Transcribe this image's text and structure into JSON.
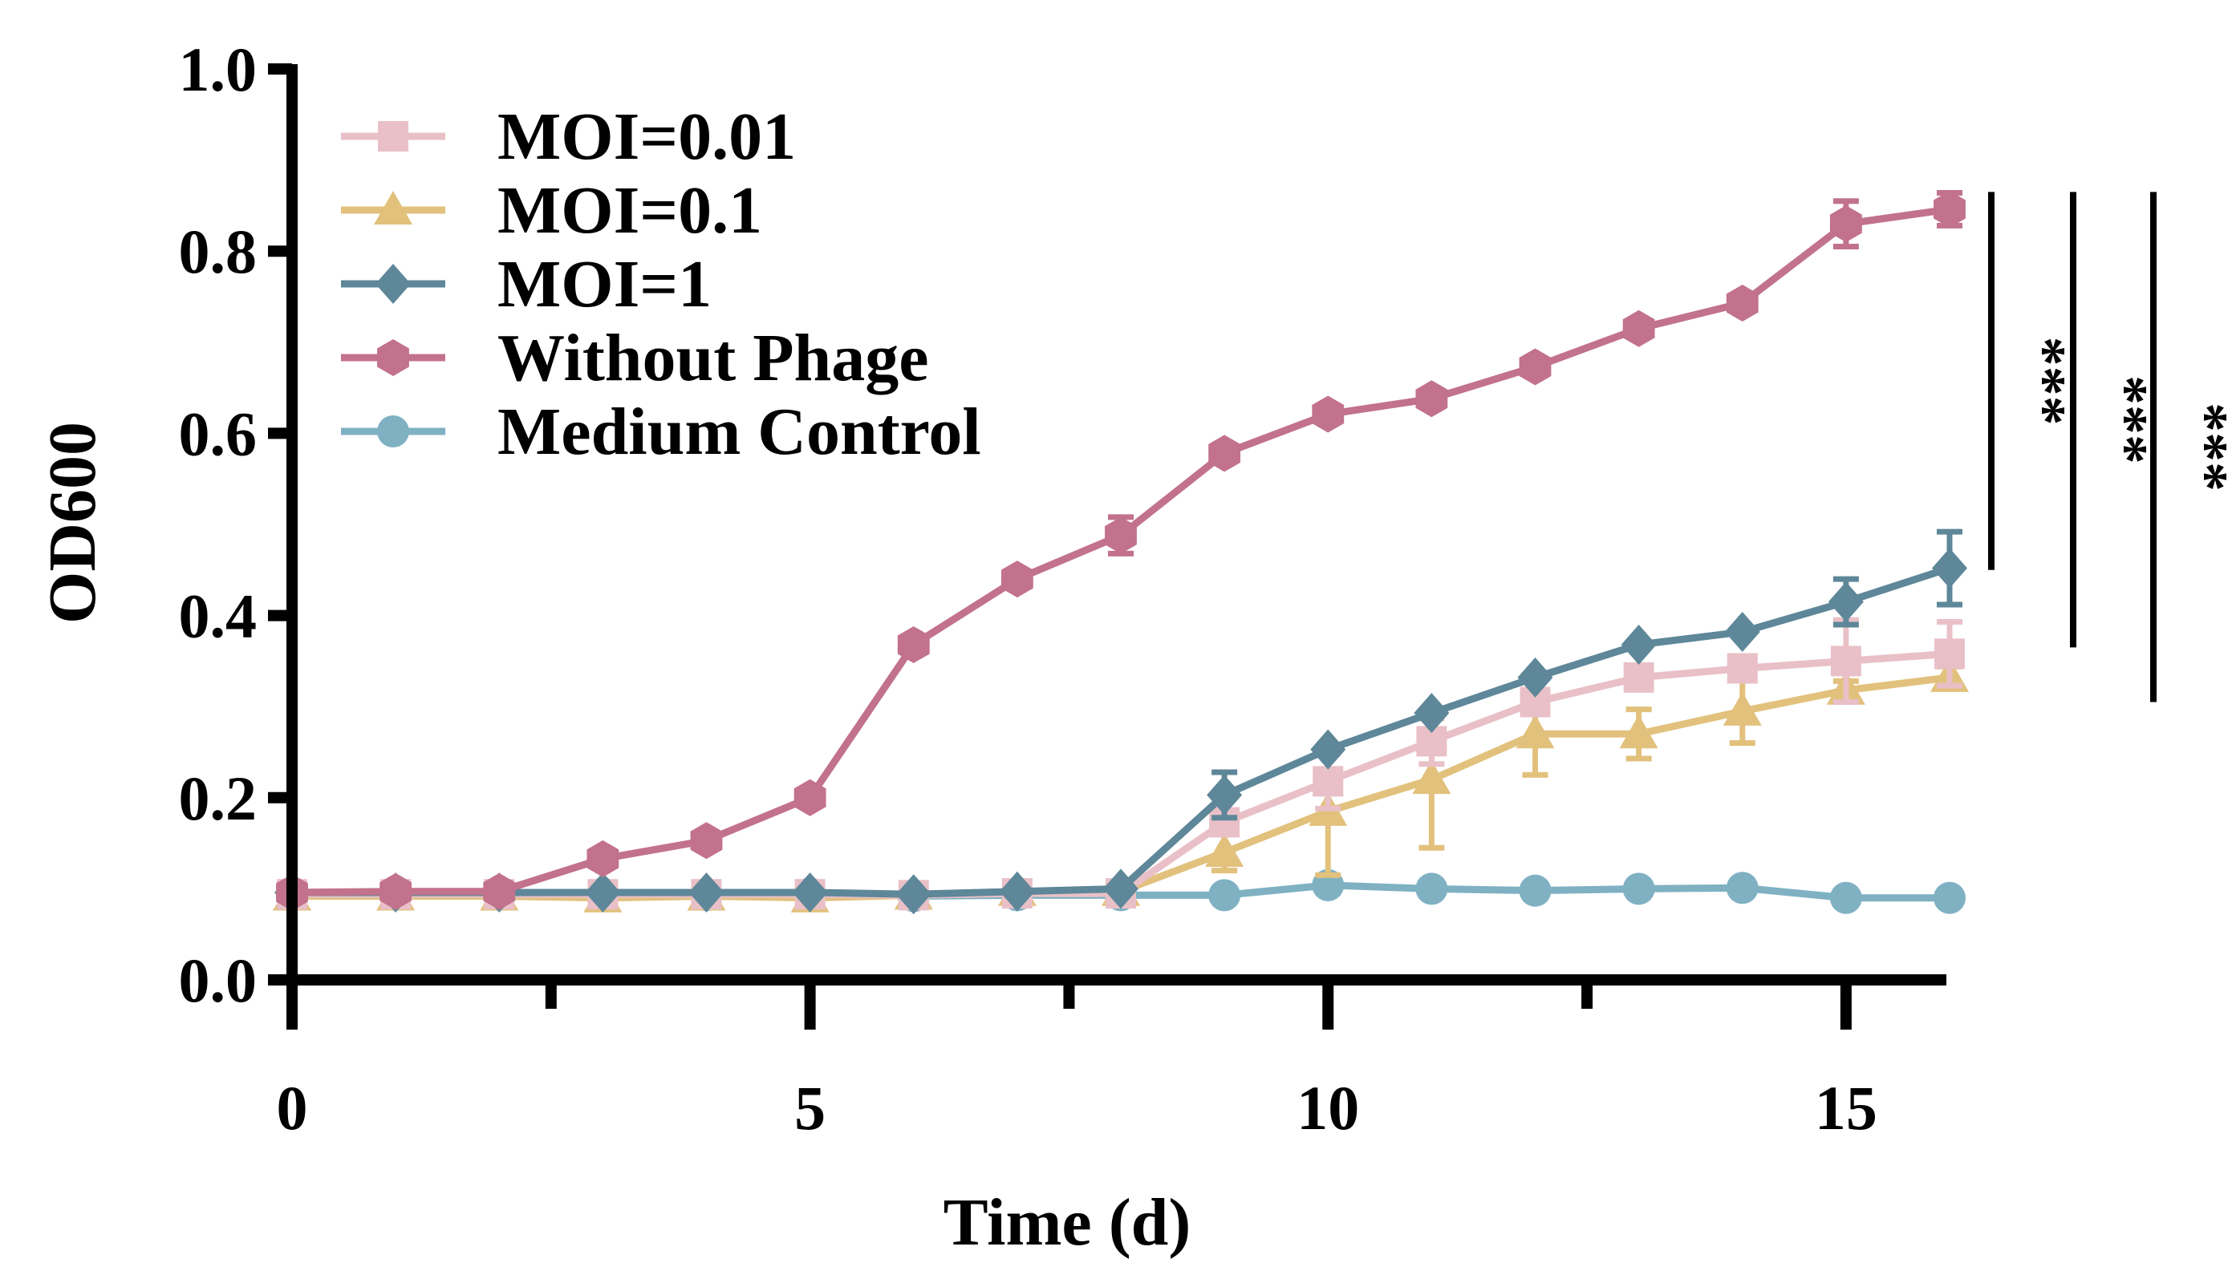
{
  "chart_data": {
    "type": "line",
    "title": "",
    "xlabel": "Time (d)",
    "ylabel": "OD600",
    "xlim": [
      0,
      16
    ],
    "ylim": [
      0,
      1.0
    ],
    "x_ticks": [
      0,
      5,
      10,
      15
    ],
    "x_minor_ticks": [
      2.5,
      7.5,
      12.5
    ],
    "x_tick_labels": [
      "0",
      "5",
      "10",
      "15"
    ],
    "y_ticks": [
      0.0,
      0.2,
      0.4,
      0.6,
      0.8,
      1.0
    ],
    "y_tick_labels": [
      "0.0",
      "0.2",
      "0.4",
      "0.6",
      "0.8",
      "1.0"
    ],
    "grid": false,
    "legend_position": "top-left",
    "x": [
      0,
      1,
      2,
      3,
      4,
      5,
      6,
      7,
      8,
      9,
      10,
      11,
      12,
      13,
      14,
      15,
      16
    ],
    "series": [
      {
        "name": "Medium Control",
        "color": "#7fb1c3",
        "marker": "circle",
        "values": [
          0.095,
          0.095,
          0.095,
          0.095,
          0.093,
          0.095,
          0.092,
          0.093,
          0.093,
          0.093,
          0.104,
          0.1,
          0.098,
          0.1,
          0.101,
          0.09,
          0.09
        ],
        "errors": [
          0,
          0,
          0,
          0,
          0,
          0,
          0,
          0,
          0,
          0,
          0,
          0,
          0,
          0,
          0,
          0,
          0
        ]
      },
      {
        "name": "MOI=0.1",
        "color": "#e2c17d",
        "marker": "triangle",
        "values": [
          0.092,
          0.092,
          0.092,
          0.09,
          0.092,
          0.09,
          0.093,
          0.097,
          0.097,
          0.14,
          0.185,
          0.22,
          0.27,
          0.27,
          0.295,
          0.318,
          0.332
        ],
        "errors": [
          0,
          0,
          0,
          0,
          0,
          0,
          0,
          0,
          0,
          0.02,
          0.07,
          0.075,
          0.045,
          0.027,
          0.035,
          0.01,
          0.012
        ]
      },
      {
        "name": "MOI=0.01",
        "color": "#e9c0c7",
        "marker": "square",
        "values": [
          0.094,
          0.094,
          0.094,
          0.094,
          0.094,
          0.094,
          0.093,
          0.095,
          0.095,
          0.173,
          0.218,
          0.262,
          0.305,
          0.332,
          0.342,
          0.35,
          0.358
        ],
        "errors": [
          0,
          0,
          0,
          0,
          0,
          0,
          0,
          0,
          0,
          0,
          0.03,
          0.025,
          0.01,
          0.01,
          0.01,
          0.045,
          0.035
        ]
      },
      {
        "name": "MOI=1",
        "color": "#5e8799",
        "marker": "diamond",
        "values": [
          0.096,
          0.096,
          0.096,
          0.096,
          0.096,
          0.096,
          0.094,
          0.097,
          0.1,
          0.203,
          0.253,
          0.293,
          0.332,
          0.368,
          0.382,
          0.415,
          0.452
        ],
        "errors": [
          0,
          0,
          0,
          0,
          0,
          0,
          0,
          0,
          0,
          0.025,
          0,
          0,
          0,
          0,
          0,
          0.025,
          0.04
        ]
      },
      {
        "name": "Without Phage",
        "color": "#c2728c",
        "marker": "hexagon",
        "values": [
          0.096,
          0.097,
          0.097,
          0.133,
          0.153,
          0.2,
          0.368,
          0.44,
          0.488,
          0.578,
          0.621,
          0.638,
          0.673,
          0.715,
          0.743,
          0.83,
          0.846
        ],
        "errors": [
          0,
          0,
          0,
          0,
          0,
          0,
          0,
          0,
          0.02,
          0,
          0,
          0,
          0,
          0,
          0,
          0.025,
          0.018
        ]
      }
    ],
    "legend_order": [
      "MOI=0.01",
      "MOI=0.1",
      "MOI=1",
      "Without Phage",
      "Medium Control"
    ],
    "annotations": [
      {
        "text": "***",
        "y_top": 0.865,
        "y_bottom": 0.45
      },
      {
        "text": "***",
        "y_top": 0.865,
        "y_bottom": 0.365
      },
      {
        "text": "***",
        "y_top": 0.865,
        "y_bottom": 0.305
      }
    ]
  }
}
